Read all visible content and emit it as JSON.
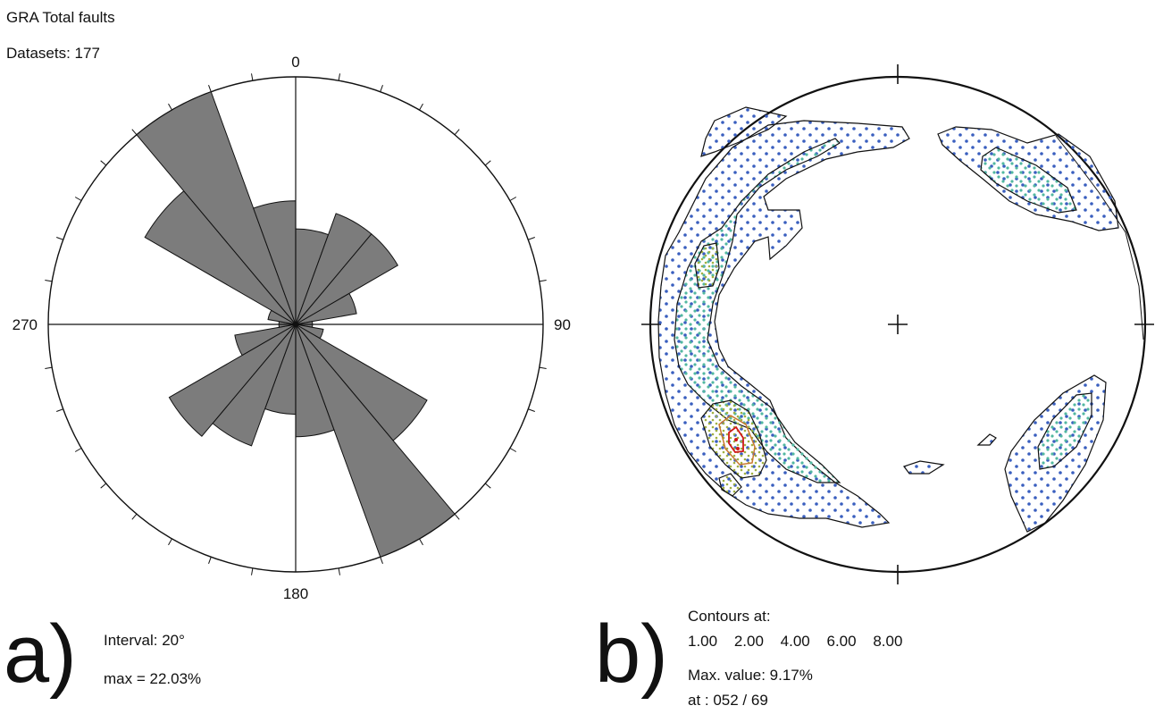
{
  "rose": {
    "title": "GRA Total faults",
    "datasets": "Datasets: 177",
    "labels": {
      "north": "0",
      "east": "90",
      "south": "180",
      "west": "270"
    },
    "panel_letter": "a)",
    "interval": "Interval: 20°",
    "max": "max = 22.03%"
  },
  "stereonet": {
    "panel_letter": "b)",
    "contours_heading": "Contours at:",
    "contour_levels": [
      "1.00",
      "2.00",
      "4.00",
      "6.00",
      "8.00"
    ],
    "max_value": "Max. value: 9.17%",
    "max_location": "at : 052 / 69"
  },
  "chart_data": [
    {
      "type": "bar",
      "subtype": "rose-diagram",
      "title": "GRA Total faults",
      "bin_width_deg": 20,
      "bins_start_deg": [
        0,
        20,
        40,
        60,
        80,
        100,
        120,
        140,
        160,
        180,
        200,
        220,
        240,
        260,
        280,
        300,
        320,
        340
      ],
      "values_percent": [
        8.5,
        10.5,
        10.5,
        5.5,
        1.5,
        2.5,
        13.5,
        22.03,
        10.0,
        8.0,
        11.5,
        13.0,
        5.5,
        1.5,
        2.5,
        15.5,
        22.03,
        11.0
      ],
      "rmax_percent": 22.03,
      "color": "#7c7c7c",
      "axis_labels": [
        "0",
        "90",
        "180",
        "270"
      ]
    },
    {
      "type": "heatmap",
      "subtype": "stereonet-contour",
      "contour_levels": [
        1.0,
        2.0,
        4.0,
        6.0,
        8.0
      ],
      "max_value_percent": 9.17,
      "max_location": "052 / 69",
      "colors": {
        "level1_dots": "#3a5fbf",
        "level2_dots": "#52b8a0",
        "level4_dots": "#a0b040",
        "level6_dots": "#c87830",
        "level8_dots": "#d01818"
      }
    }
  ]
}
